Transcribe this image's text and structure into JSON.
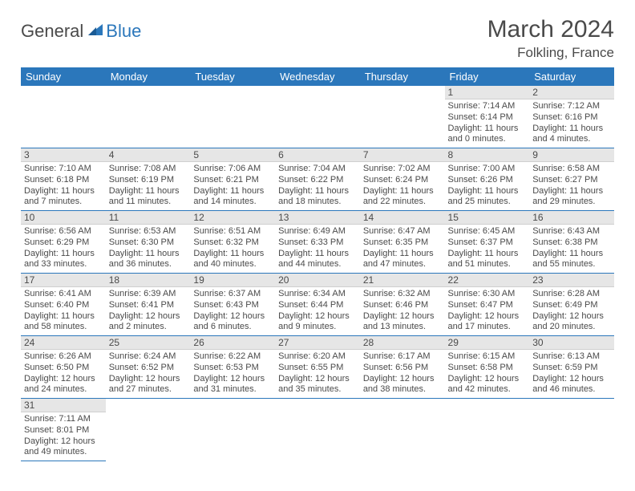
{
  "brand": {
    "general": "General",
    "blue": "Blue"
  },
  "title": {
    "month_year": "March 2024",
    "location": "Folkling, France"
  },
  "style": {
    "header_bg": "#2b77bb",
    "header_text": "#ffffff",
    "row_divider": "#2b77bb",
    "daynum_bg": "#e6e6e6",
    "page_bg": "#ffffff",
    "text_color": "#4a4a4a",
    "title_fontsize": 30,
    "location_fontsize": 17,
    "dayhead_fontsize": 13,
    "daynum_fontsize": 12,
    "body_fontsize": 11
  },
  "day_headers": [
    "Sunday",
    "Monday",
    "Tuesday",
    "Wednesday",
    "Thursday",
    "Friday",
    "Saturday"
  ],
  "weeks": [
    [
      null,
      null,
      null,
      null,
      null,
      {
        "n": "1",
        "sunrise": "Sunrise: 7:14 AM",
        "sunset": "Sunset: 6:14 PM",
        "daylight": "Daylight: 11 hours and 0 minutes."
      },
      {
        "n": "2",
        "sunrise": "Sunrise: 7:12 AM",
        "sunset": "Sunset: 6:16 PM",
        "daylight": "Daylight: 11 hours and 4 minutes."
      }
    ],
    [
      {
        "n": "3",
        "sunrise": "Sunrise: 7:10 AM",
        "sunset": "Sunset: 6:18 PM",
        "daylight": "Daylight: 11 hours and 7 minutes."
      },
      {
        "n": "4",
        "sunrise": "Sunrise: 7:08 AM",
        "sunset": "Sunset: 6:19 PM",
        "daylight": "Daylight: 11 hours and 11 minutes."
      },
      {
        "n": "5",
        "sunrise": "Sunrise: 7:06 AM",
        "sunset": "Sunset: 6:21 PM",
        "daylight": "Daylight: 11 hours and 14 minutes."
      },
      {
        "n": "6",
        "sunrise": "Sunrise: 7:04 AM",
        "sunset": "Sunset: 6:22 PM",
        "daylight": "Daylight: 11 hours and 18 minutes."
      },
      {
        "n": "7",
        "sunrise": "Sunrise: 7:02 AM",
        "sunset": "Sunset: 6:24 PM",
        "daylight": "Daylight: 11 hours and 22 minutes."
      },
      {
        "n": "8",
        "sunrise": "Sunrise: 7:00 AM",
        "sunset": "Sunset: 6:26 PM",
        "daylight": "Daylight: 11 hours and 25 minutes."
      },
      {
        "n": "9",
        "sunrise": "Sunrise: 6:58 AM",
        "sunset": "Sunset: 6:27 PM",
        "daylight": "Daylight: 11 hours and 29 minutes."
      }
    ],
    [
      {
        "n": "10",
        "sunrise": "Sunrise: 6:56 AM",
        "sunset": "Sunset: 6:29 PM",
        "daylight": "Daylight: 11 hours and 33 minutes."
      },
      {
        "n": "11",
        "sunrise": "Sunrise: 6:53 AM",
        "sunset": "Sunset: 6:30 PM",
        "daylight": "Daylight: 11 hours and 36 minutes."
      },
      {
        "n": "12",
        "sunrise": "Sunrise: 6:51 AM",
        "sunset": "Sunset: 6:32 PM",
        "daylight": "Daylight: 11 hours and 40 minutes."
      },
      {
        "n": "13",
        "sunrise": "Sunrise: 6:49 AM",
        "sunset": "Sunset: 6:33 PM",
        "daylight": "Daylight: 11 hours and 44 minutes."
      },
      {
        "n": "14",
        "sunrise": "Sunrise: 6:47 AM",
        "sunset": "Sunset: 6:35 PM",
        "daylight": "Daylight: 11 hours and 47 minutes."
      },
      {
        "n": "15",
        "sunrise": "Sunrise: 6:45 AM",
        "sunset": "Sunset: 6:37 PM",
        "daylight": "Daylight: 11 hours and 51 minutes."
      },
      {
        "n": "16",
        "sunrise": "Sunrise: 6:43 AM",
        "sunset": "Sunset: 6:38 PM",
        "daylight": "Daylight: 11 hours and 55 minutes."
      }
    ],
    [
      {
        "n": "17",
        "sunrise": "Sunrise: 6:41 AM",
        "sunset": "Sunset: 6:40 PM",
        "daylight": "Daylight: 11 hours and 58 minutes."
      },
      {
        "n": "18",
        "sunrise": "Sunrise: 6:39 AM",
        "sunset": "Sunset: 6:41 PM",
        "daylight": "Daylight: 12 hours and 2 minutes."
      },
      {
        "n": "19",
        "sunrise": "Sunrise: 6:37 AM",
        "sunset": "Sunset: 6:43 PM",
        "daylight": "Daylight: 12 hours and 6 minutes."
      },
      {
        "n": "20",
        "sunrise": "Sunrise: 6:34 AM",
        "sunset": "Sunset: 6:44 PM",
        "daylight": "Daylight: 12 hours and 9 minutes."
      },
      {
        "n": "21",
        "sunrise": "Sunrise: 6:32 AM",
        "sunset": "Sunset: 6:46 PM",
        "daylight": "Daylight: 12 hours and 13 minutes."
      },
      {
        "n": "22",
        "sunrise": "Sunrise: 6:30 AM",
        "sunset": "Sunset: 6:47 PM",
        "daylight": "Daylight: 12 hours and 17 minutes."
      },
      {
        "n": "23",
        "sunrise": "Sunrise: 6:28 AM",
        "sunset": "Sunset: 6:49 PM",
        "daylight": "Daylight: 12 hours and 20 minutes."
      }
    ],
    [
      {
        "n": "24",
        "sunrise": "Sunrise: 6:26 AM",
        "sunset": "Sunset: 6:50 PM",
        "daylight": "Daylight: 12 hours and 24 minutes."
      },
      {
        "n": "25",
        "sunrise": "Sunrise: 6:24 AM",
        "sunset": "Sunset: 6:52 PM",
        "daylight": "Daylight: 12 hours and 27 minutes."
      },
      {
        "n": "26",
        "sunrise": "Sunrise: 6:22 AM",
        "sunset": "Sunset: 6:53 PM",
        "daylight": "Daylight: 12 hours and 31 minutes."
      },
      {
        "n": "27",
        "sunrise": "Sunrise: 6:20 AM",
        "sunset": "Sunset: 6:55 PM",
        "daylight": "Daylight: 12 hours and 35 minutes."
      },
      {
        "n": "28",
        "sunrise": "Sunrise: 6:17 AM",
        "sunset": "Sunset: 6:56 PM",
        "daylight": "Daylight: 12 hours and 38 minutes."
      },
      {
        "n": "29",
        "sunrise": "Sunrise: 6:15 AM",
        "sunset": "Sunset: 6:58 PM",
        "daylight": "Daylight: 12 hours and 42 minutes."
      },
      {
        "n": "30",
        "sunrise": "Sunrise: 6:13 AM",
        "sunset": "Sunset: 6:59 PM",
        "daylight": "Daylight: 12 hours and 46 minutes."
      }
    ],
    [
      {
        "n": "31",
        "sunrise": "Sunrise: 7:11 AM",
        "sunset": "Sunset: 8:01 PM",
        "daylight": "Daylight: 12 hours and 49 minutes."
      },
      null,
      null,
      null,
      null,
      null,
      null
    ]
  ]
}
